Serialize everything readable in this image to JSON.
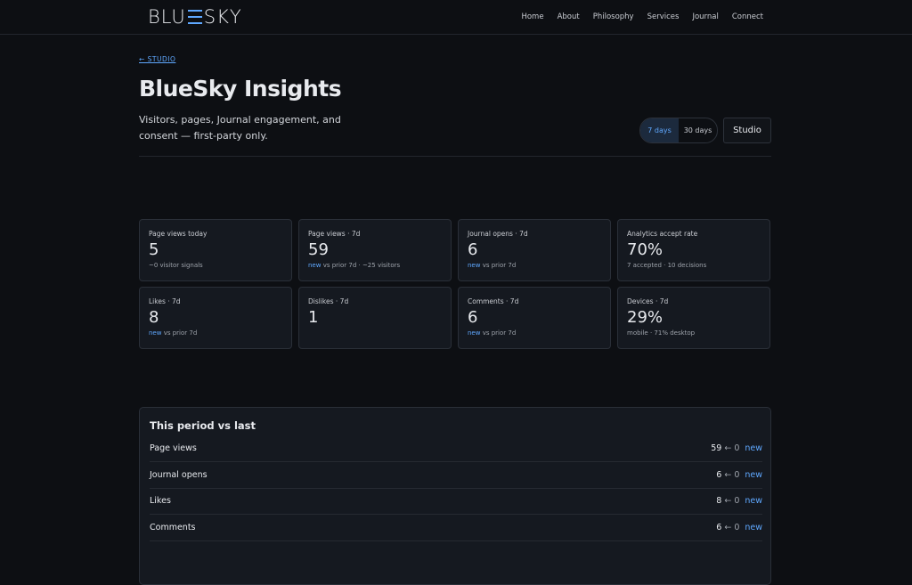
{
  "nav": {
    "logo_left": "BLU",
    "logo_right": "SKY",
    "links": [
      "Home",
      "About",
      "Philosophy",
      "Services",
      "Journal",
      "Connect"
    ]
  },
  "header": {
    "back": "← STUDIO",
    "title": "BlueSky Insights",
    "subtitle": "Visitors, pages, Journal engagement, and consent — first-party only.",
    "ranges": [
      "7 days",
      "30 days"
    ],
    "button": "Studio"
  },
  "cards": [
    {
      "label": "Page views today",
      "value": "5",
      "note": "~0 visitor signals"
    },
    {
      "label": "Page views · 7d",
      "value": "59",
      "highlight": "new",
      "note": "vs prior 7d · ~25 visitors"
    },
    {
      "label": "Journal opens · 7d",
      "value": "6",
      "highlight": "new",
      "note": "vs prior 7d"
    },
    {
      "label": "Analytics accept rate",
      "value": "70%",
      "note": "7 accepted · 10 decisions"
    },
    {
      "label": "Likes · 7d",
      "value": "8",
      "highlight": "new",
      "note": "vs prior 7d"
    },
    {
      "label": "Dislikes · 7d",
      "value": "1"
    },
    {
      "label": "Comments · 7d",
      "value": "6",
      "highlight": "new",
      "note": "vs prior 7d"
    },
    {
      "label": "Devices · 7d",
      "value": "29%",
      "note": "mobile · 71% desktop"
    }
  ],
  "comparison": {
    "title": "This period vs last",
    "rows": [
      {
        "label": "Page views",
        "current": "59",
        "arrow": "←",
        "previous": "0",
        "change": "new"
      },
      {
        "label": "Journal opens",
        "current": "6",
        "arrow": "←",
        "previous": "0",
        "change": "new"
      },
      {
        "label": "Likes",
        "current": "8",
        "arrow": "←",
        "previous": "0",
        "change": "new"
      },
      {
        "label": "Comments",
        "current": "6",
        "arrow": "←",
        "previous": "0",
        "change": "new"
      }
    ]
  }
}
